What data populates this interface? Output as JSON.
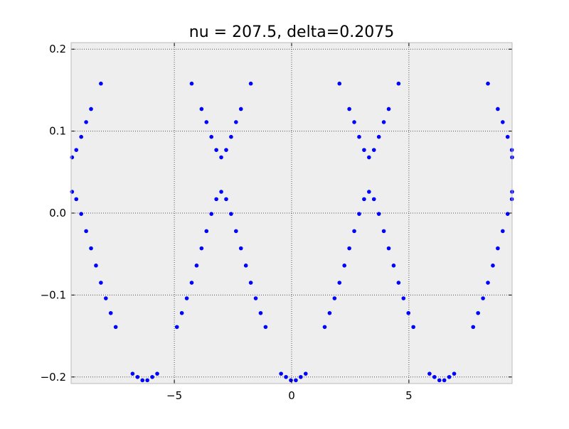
{
  "chart_data": {
    "type": "scatter",
    "title": "nu = 207.5, delta=0.2075",
    "xlabel": "",
    "ylabel": "",
    "xlim": [
      -9.4,
      9.4
    ],
    "ylim": [
      -0.208,
      0.208
    ],
    "x_ticks": [
      -5,
      0,
      5
    ],
    "x_tick_labels": [
      "−5",
      "0",
      "5"
    ],
    "y_ticks": [
      -0.2,
      -0.1,
      0.0,
      0.1,
      0.2
    ],
    "y_tick_labels": [
      "−0.2",
      "−0.1",
      "0.0",
      "0.1",
      "0.2"
    ],
    "grid": true,
    "legend": "none",
    "colors": {
      "marker": "#0000ff",
      "plot_background": "#eeeeee",
      "grid": "#555555",
      "axes": "#bbbbbb"
    },
    "series": [
      {
        "points": [
          [
            -9.36,
            0.068
          ],
          [
            -9.36,
            0.026
          ],
          [
            -9.18,
            0.077
          ],
          [
            -9.18,
            0.017
          ],
          [
            -8.97,
            0.093
          ],
          [
            -8.97,
            -0.001
          ],
          [
            -8.76,
            0.111
          ],
          [
            -8.76,
            -0.022
          ],
          [
            -8.55,
            0.127
          ],
          [
            -8.55,
            -0.043
          ],
          [
            -8.34,
            -0.064
          ],
          [
            -8.13,
            0.158
          ],
          [
            -8.13,
            -0.085
          ],
          [
            -7.92,
            -0.104
          ],
          [
            -7.71,
            -0.122
          ],
          [
            -7.5,
            -0.139
          ],
          [
            -6.78,
            -0.196
          ],
          [
            -6.57,
            -0.2
          ],
          [
            -6.36,
            -0.204
          ],
          [
            -6.15,
            -0.204
          ],
          [
            -5.94,
            -0.2
          ],
          [
            -5.73,
            -0.196
          ],
          [
            -4.89,
            -0.139
          ],
          [
            -4.68,
            -0.122
          ],
          [
            -4.47,
            -0.104
          ],
          [
            -4.26,
            0.158
          ],
          [
            -4.26,
            -0.085
          ],
          [
            -4.05,
            -0.064
          ],
          [
            -3.84,
            0.127
          ],
          [
            -3.84,
            -0.043
          ],
          [
            -3.63,
            0.111
          ],
          [
            -3.63,
            -0.022
          ],
          [
            -3.42,
            0.093
          ],
          [
            -3.42,
            -0.001
          ],
          [
            -3.21,
            0.077
          ],
          [
            -3.21,
            0.017
          ],
          [
            -3.0,
            0.068
          ],
          [
            -3.0,
            0.026
          ],
          [
            -2.79,
            0.077
          ],
          [
            -2.79,
            0.017
          ],
          [
            -2.58,
            0.093
          ],
          [
            -2.58,
            -0.001
          ],
          [
            -2.37,
            0.111
          ],
          [
            -2.37,
            -0.022
          ],
          [
            -2.16,
            0.127
          ],
          [
            -2.16,
            -0.043
          ],
          [
            -1.95,
            -0.064
          ],
          [
            -1.74,
            0.158
          ],
          [
            -1.74,
            -0.085
          ],
          [
            -1.53,
            -0.104
          ],
          [
            -1.32,
            -0.122
          ],
          [
            -1.11,
            -0.139
          ],
          [
            -0.45,
            -0.196
          ],
          [
            -0.24,
            -0.2
          ],
          [
            -0.03,
            -0.204
          ],
          [
            0.18,
            -0.204
          ],
          [
            0.39,
            -0.2
          ],
          [
            0.6,
            -0.196
          ],
          [
            1.41,
            -0.139
          ],
          [
            1.62,
            -0.122
          ],
          [
            1.83,
            -0.104
          ],
          [
            2.04,
            0.158
          ],
          [
            2.04,
            -0.085
          ],
          [
            2.25,
            -0.064
          ],
          [
            2.46,
            0.127
          ],
          [
            2.46,
            -0.043
          ],
          [
            2.67,
            0.111
          ],
          [
            2.67,
            -0.022
          ],
          [
            2.88,
            0.093
          ],
          [
            2.88,
            -0.001
          ],
          [
            3.09,
            0.077
          ],
          [
            3.09,
            0.017
          ],
          [
            3.3,
            0.068
          ],
          [
            3.3,
            0.026
          ],
          [
            3.51,
            0.077
          ],
          [
            3.51,
            0.017
          ],
          [
            3.72,
            0.093
          ],
          [
            3.72,
            -0.001
          ],
          [
            3.93,
            0.111
          ],
          [
            3.93,
            -0.022
          ],
          [
            4.14,
            0.127
          ],
          [
            4.14,
            -0.043
          ],
          [
            4.35,
            -0.064
          ],
          [
            4.56,
            0.158
          ],
          [
            4.56,
            -0.085
          ],
          [
            4.77,
            -0.104
          ],
          [
            4.98,
            -0.122
          ],
          [
            5.19,
            -0.139
          ],
          [
            5.88,
            -0.196
          ],
          [
            6.09,
            -0.2
          ],
          [
            6.3,
            -0.204
          ],
          [
            6.51,
            -0.204
          ],
          [
            6.72,
            -0.2
          ],
          [
            6.93,
            -0.196
          ],
          [
            7.74,
            -0.139
          ],
          [
            7.95,
            -0.122
          ],
          [
            8.16,
            -0.104
          ],
          [
            8.37,
            0.158
          ],
          [
            8.37,
            -0.085
          ],
          [
            8.58,
            -0.064
          ],
          [
            8.79,
            0.127
          ],
          [
            8.79,
            -0.043
          ],
          [
            9.0,
            0.111
          ],
          [
            9.0,
            -0.022
          ],
          [
            9.21,
            0.093
          ],
          [
            9.21,
            -0.001
          ],
          [
            9.39,
            0.077
          ],
          [
            9.39,
            0.017
          ],
          [
            9.4,
            0.068
          ],
          [
            9.4,
            0.026
          ]
        ]
      }
    ]
  }
}
